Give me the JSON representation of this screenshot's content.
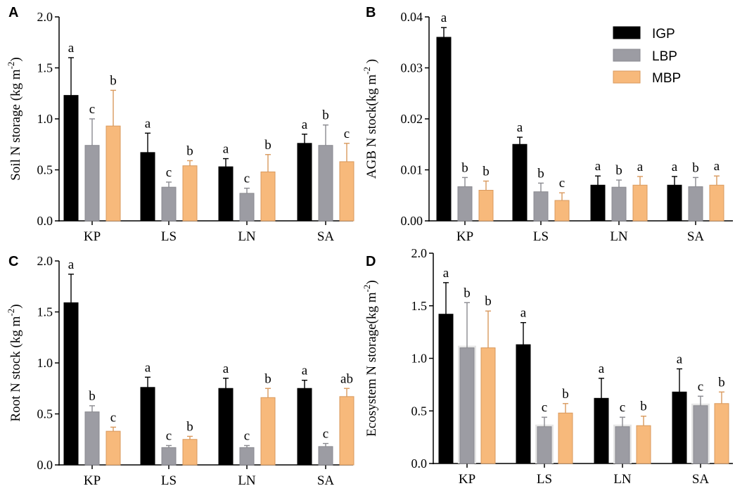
{
  "legend": {
    "placement": "top-right of panel B",
    "entries": [
      {
        "name": "IGP",
        "color": "#000000"
      },
      {
        "name": "LBP",
        "color": "#9c9ca3"
      },
      {
        "name": "MBP",
        "color": "#f7b97b"
      }
    ]
  },
  "chart_data": [
    {
      "panel": "A",
      "type": "bar",
      "ylabel_main": "Soil N storage (kg m",
      "ylabel_sup": "-2",
      "ylabel_close": ")",
      "categories": [
        "KP",
        "LS",
        "LN",
        "SA"
      ],
      "ylim": [
        0,
        2.0
      ],
      "yticks": [
        0.0,
        0.5,
        1.0,
        1.5,
        2.0
      ],
      "ytick_labels": [
        "0.0",
        "0.5",
        "1.0",
        "1.5",
        "2.0"
      ],
      "series": [
        {
          "name": "IGP",
          "values": [
            1.23,
            0.67,
            0.53,
            0.76
          ],
          "errors": [
            0.37,
            0.19,
            0.08,
            0.09
          ],
          "letters": [
            "a",
            "a",
            "a",
            "a"
          ]
        },
        {
          "name": "LBP",
          "values": [
            0.74,
            0.33,
            0.27,
            0.74
          ],
          "errors": [
            0.26,
            0.05,
            0.05,
            0.2
          ],
          "letters": [
            "c",
            "c",
            "c",
            "b"
          ]
        },
        {
          "name": "MBP",
          "values": [
            0.93,
            0.54,
            0.48,
            0.58
          ],
          "errors": [
            0.35,
            0.05,
            0.17,
            0.18
          ],
          "letters": [
            "b",
            "b",
            "b",
            "c"
          ]
        }
      ]
    },
    {
      "panel": "B",
      "type": "bar",
      "ylabel_main": "AGB N stock(kg m",
      "ylabel_sup": "-2",
      "ylabel_close": " )",
      "categories": [
        "KP",
        "LS",
        "LN",
        "SA"
      ],
      "ylim": [
        0,
        0.04
      ],
      "yticks": [
        0.0,
        0.01,
        0.02,
        0.03,
        0.04
      ],
      "ytick_labels": [
        "0.00",
        "0.01",
        "0.02",
        "0.03",
        "0.04"
      ],
      "series": [
        {
          "name": "IGP",
          "values": [
            0.036,
            0.015,
            0.007,
            0.007
          ],
          "errors": [
            0.0019,
            0.0014,
            0.0018,
            0.0017
          ],
          "letters": [
            "a",
            "a",
            "a",
            "a"
          ]
        },
        {
          "name": "LBP",
          "values": [
            0.0067,
            0.0057,
            0.0066,
            0.0067
          ],
          "errors": [
            0.0018,
            0.0017,
            0.0014,
            0.0018
          ],
          "letters": [
            "b",
            "b",
            "b",
            "b"
          ]
        },
        {
          "name": "MBP",
          "values": [
            0.006,
            0.004,
            0.007,
            0.007
          ],
          "errors": [
            0.0018,
            0.0015,
            0.0017,
            0.0018
          ],
          "letters": [
            "b",
            "c",
            "a",
            "a"
          ]
        }
      ]
    },
    {
      "panel": "C",
      "type": "bar",
      "ylabel_main": "Root N stock (kg m",
      "ylabel_sup": "-2",
      "ylabel_close": ")",
      "categories": [
        "KP",
        "LS",
        "LN",
        "SA"
      ],
      "ylim": [
        0,
        2.0
      ],
      "yticks": [
        0.0,
        0.5,
        1.0,
        1.5,
        2.0
      ],
      "ytick_labels": [
        "0.0",
        "0.5",
        "1.0",
        "1.5",
        "2.0"
      ],
      "series": [
        {
          "name": "IGP",
          "values": [
            1.59,
            0.76,
            0.75,
            0.75
          ],
          "errors": [
            0.28,
            0.1,
            0.1,
            0.08
          ],
          "letters": [
            "a",
            "a",
            "a",
            "a"
          ]
        },
        {
          "name": "LBP",
          "values": [
            0.52,
            0.17,
            0.17,
            0.18
          ],
          "errors": [
            0.06,
            0.02,
            0.02,
            0.03
          ],
          "letters": [
            "b",
            "c",
            "c",
            "c"
          ]
        },
        {
          "name": "MBP",
          "values": [
            0.33,
            0.25,
            0.66,
            0.67
          ],
          "errors": [
            0.04,
            0.03,
            0.09,
            0.08
          ],
          "letters": [
            "c",
            "b",
            "b",
            "ab"
          ]
        }
      ]
    },
    {
      "panel": "D",
      "type": "bar",
      "ylabel_main": "Ecosystem N storage(kg m",
      "ylabel_sup": "-2",
      "ylabel_close": ")",
      "categories": [
        "KP",
        "LS",
        "LN",
        "SA"
      ],
      "ylim": [
        0,
        2.0
      ],
      "yticks": [
        0.0,
        0.5,
        1.0,
        1.5,
        2.0
      ],
      "ytick_labels": [
        "0.0",
        "0.5",
        "1.0",
        "1.5",
        "2.0"
      ],
      "series": [
        {
          "name": "IGP",
          "values": [
            1.42,
            1.13,
            0.62,
            0.68
          ],
          "errors": [
            0.3,
            0.21,
            0.19,
            0.22
          ],
          "letters": [
            "a",
            "a",
            "a",
            "a"
          ]
        },
        {
          "name": "LBP",
          "values": [
            1.1,
            0.35,
            0.35,
            0.55
          ],
          "errors": [
            0.43,
            0.09,
            0.09,
            0.09
          ],
          "letters": [
            "b",
            "c",
            "c",
            "c"
          ]
        },
        {
          "name": "MBP",
          "values": [
            1.1,
            0.48,
            0.36,
            0.57
          ],
          "errors": [
            0.35,
            0.09,
            0.09,
            0.11
          ],
          "letters": [
            "b",
            "b",
            "b",
            "b"
          ]
        }
      ]
    }
  ]
}
